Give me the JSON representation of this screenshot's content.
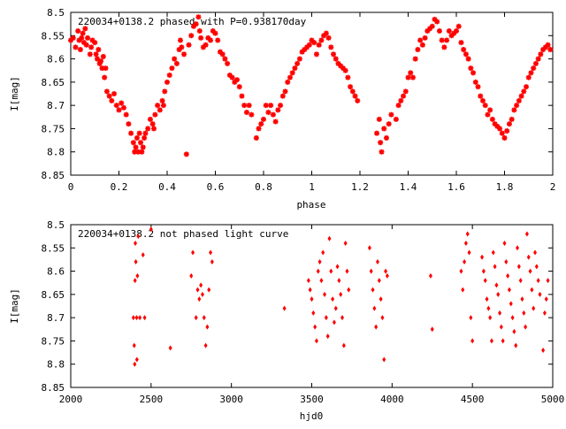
{
  "chart_data": [
    {
      "type": "scatter",
      "title": "220034+0138.2 phased with P=0.938170day",
      "xlabel": "phase",
      "ylabel": "I[mag]",
      "xlim": [
        0,
        2
      ],
      "ylim": [
        8.5,
        8.85
      ],
      "y_inverted": true,
      "grid": false,
      "marker": "filled-star",
      "marker_color": "#ff0000",
      "x_ticks": [
        "0",
        "0.2",
        "0.4",
        "0.6",
        "0.8",
        "1",
        "1.2",
        "1.4",
        "1.6",
        "1.8",
        "2"
      ],
      "y_ticks": [
        "8.5",
        "8.55",
        "8.6",
        "8.65",
        "8.7",
        "8.75",
        "8.8",
        "8.85"
      ],
      "points": [
        [
          0.0,
          8.56
        ],
        [
          0.01,
          8.555
        ],
        [
          0.02,
          8.575
        ],
        [
          0.03,
          8.54
        ],
        [
          0.035,
          8.56
        ],
        [
          0.04,
          8.58
        ],
        [
          0.045,
          8.555
        ],
        [
          0.05,
          8.545
        ],
        [
          0.055,
          8.565
        ],
        [
          0.06,
          8.535
        ],
        [
          0.065,
          8.57
        ],
        [
          0.07,
          8.555
        ],
        [
          0.08,
          8.59
        ],
        [
          0.085,
          8.575
        ],
        [
          0.09,
          8.56
        ],
        [
          0.1,
          8.565
        ],
        [
          0.105,
          8.59
        ],
        [
          0.11,
          8.6
        ],
        [
          0.115,
          8.58
        ],
        [
          0.12,
          8.61
        ],
        [
          0.125,
          8.605
        ],
        [
          0.13,
          8.62
        ],
        [
          0.135,
          8.595
        ],
        [
          0.14,
          8.64
        ],
        [
          0.145,
          8.62
        ],
        [
          0.15,
          8.67
        ],
        [
          0.16,
          8.68
        ],
        [
          0.17,
          8.69
        ],
        [
          0.18,
          8.675
        ],
        [
          0.19,
          8.7
        ],
        [
          0.2,
          8.71
        ],
        [
          0.21,
          8.695
        ],
        [
          0.22,
          8.705
        ],
        [
          0.23,
          8.72
        ],
        [
          0.24,
          8.74
        ],
        [
          0.25,
          8.76
        ],
        [
          0.26,
          8.78
        ],
        [
          0.265,
          8.8
        ],
        [
          0.27,
          8.79
        ],
        [
          0.275,
          8.77
        ],
        [
          0.28,
          8.8
        ],
        [
          0.285,
          8.76
        ],
        [
          0.29,
          8.78
        ],
        [
          0.295,
          8.8
        ],
        [
          0.3,
          8.79
        ],
        [
          0.305,
          8.77
        ],
        [
          0.31,
          8.76
        ],
        [
          0.32,
          8.75
        ],
        [
          0.33,
          8.73
        ],
        [
          0.34,
          8.74
        ],
        [
          0.345,
          8.75
        ],
        [
          0.35,
          8.72
        ],
        [
          0.36,
          8.7
        ],
        [
          0.37,
          8.71
        ],
        [
          0.38,
          8.69
        ],
        [
          0.385,
          8.7
        ],
        [
          0.39,
          8.67
        ],
        [
          0.4,
          8.65
        ],
        [
          0.41,
          8.635
        ],
        [
          0.42,
          8.62
        ],
        [
          0.43,
          8.6
        ],
        [
          0.44,
          8.61
        ],
        [
          0.45,
          8.58
        ],
        [
          0.455,
          8.56
        ],
        [
          0.46,
          8.575
        ],
        [
          0.47,
          8.59
        ],
        [
          0.48,
          8.805
        ],
        [
          0.49,
          8.57
        ],
        [
          0.5,
          8.55
        ],
        [
          0.51,
          8.53
        ],
        [
          0.52,
          8.525
        ],
        [
          0.53,
          8.51
        ],
        [
          0.535,
          8.54
        ],
        [
          0.54,
          8.555
        ],
        [
          0.55,
          8.575
        ],
        [
          0.56,
          8.57
        ],
        [
          0.57,
          8.555
        ],
        [
          0.58,
          8.56
        ],
        [
          0.59,
          8.54
        ],
        [
          0.6,
          8.545
        ],
        [
          0.61,
          8.56
        ],
        [
          0.62,
          8.585
        ],
        [
          0.63,
          8.59
        ],
        [
          0.64,
          8.6
        ],
        [
          0.65,
          8.61
        ],
        [
          0.66,
          8.635
        ],
        [
          0.67,
          8.64
        ],
        [
          0.68,
          8.65
        ],
        [
          0.69,
          8.645
        ],
        [
          0.7,
          8.66
        ],
        [
          0.71,
          8.68
        ],
        [
          0.72,
          8.7
        ],
        [
          0.73,
          8.715
        ],
        [
          0.74,
          8.7
        ],
        [
          0.75,
          8.72
        ],
        [
          0.77,
          8.77
        ],
        [
          0.78,
          8.75
        ],
        [
          0.79,
          8.74
        ],
        [
          0.8,
          8.73
        ],
        [
          0.81,
          8.7
        ],
        [
          0.82,
          8.715
        ],
        [
          0.83,
          8.7
        ],
        [
          0.84,
          8.72
        ],
        [
          0.85,
          8.735
        ],
        [
          0.86,
          8.71
        ],
        [
          0.87,
          8.7
        ],
        [
          0.88,
          8.68
        ],
        [
          0.89,
          8.67
        ],
        [
          0.9,
          8.65
        ],
        [
          0.91,
          8.64
        ],
        [
          0.92,
          8.63
        ],
        [
          0.93,
          8.62
        ],
        [
          0.94,
          8.61
        ],
        [
          0.95,
          8.6
        ],
        [
          0.96,
          8.585
        ],
        [
          0.97,
          8.58
        ],
        [
          0.98,
          8.575
        ],
        [
          0.99,
          8.57
        ],
        [
          1.0,
          8.56
        ],
        [
          1.01,
          8.565
        ],
        [
          1.02,
          8.59
        ],
        [
          1.03,
          8.57
        ],
        [
          1.04,
          8.56
        ],
        [
          1.05,
          8.55
        ],
        [
          1.06,
          8.545
        ],
        [
          1.07,
          8.555
        ],
        [
          1.08,
          8.575
        ],
        [
          1.09,
          8.59
        ],
        [
          1.1,
          8.6
        ],
        [
          1.11,
          8.61
        ],
        [
          1.12,
          8.615
        ],
        [
          1.13,
          8.62
        ],
        [
          1.14,
          8.625
        ],
        [
          1.15,
          8.64
        ],
        [
          1.16,
          8.66
        ],
        [
          1.17,
          8.67
        ],
        [
          1.18,
          8.68
        ],
        [
          1.19,
          8.69
        ],
        [
          1.27,
          8.76
        ],
        [
          1.28,
          8.73
        ],
        [
          1.285,
          8.78
        ],
        [
          1.29,
          8.8
        ],
        [
          1.3,
          8.75
        ],
        [
          1.31,
          8.77
        ],
        [
          1.32,
          8.74
        ],
        [
          1.33,
          8.72
        ],
        [
          1.35,
          8.73
        ],
        [
          1.36,
          8.7
        ],
        [
          1.37,
          8.69
        ],
        [
          1.38,
          8.68
        ],
        [
          1.39,
          8.67
        ],
        [
          1.4,
          8.64
        ],
        [
          1.41,
          8.63
        ],
        [
          1.42,
          8.64
        ],
        [
          1.43,
          8.6
        ],
        [
          1.44,
          8.58
        ],
        [
          1.45,
          8.56
        ],
        [
          1.46,
          8.57
        ],
        [
          1.47,
          8.555
        ],
        [
          1.48,
          8.54
        ],
        [
          1.49,
          8.535
        ],
        [
          1.5,
          8.53
        ],
        [
          1.51,
          8.515
        ],
        [
          1.52,
          8.52
        ],
        [
          1.53,
          8.54
        ],
        [
          1.54,
          8.56
        ],
        [
          1.55,
          8.575
        ],
        [
          1.56,
          8.56
        ],
        [
          1.57,
          8.54
        ],
        [
          1.58,
          8.55
        ],
        [
          1.59,
          8.545
        ],
        [
          1.6,
          8.54
        ],
        [
          1.61,
          8.53
        ],
        [
          1.62,
          8.565
        ],
        [
          1.63,
          8.58
        ],
        [
          1.64,
          8.59
        ],
        [
          1.65,
          8.6
        ],
        [
          1.66,
          8.62
        ],
        [
          1.67,
          8.63
        ],
        [
          1.68,
          8.65
        ],
        [
          1.69,
          8.66
        ],
        [
          1.7,
          8.68
        ],
        [
          1.71,
          8.69
        ],
        [
          1.72,
          8.7
        ],
        [
          1.73,
          8.72
        ],
        [
          1.74,
          8.71
        ],
        [
          1.75,
          8.73
        ],
        [
          1.76,
          8.74
        ],
        [
          1.77,
          8.745
        ],
        [
          1.78,
          8.75
        ],
        [
          1.79,
          8.76
        ],
        [
          1.8,
          8.77
        ],
        [
          1.81,
          8.755
        ],
        [
          1.82,
          8.74
        ],
        [
          1.83,
          8.73
        ],
        [
          1.84,
          8.71
        ],
        [
          1.85,
          8.7
        ],
        [
          1.86,
          8.69
        ],
        [
          1.87,
          8.68
        ],
        [
          1.88,
          8.67
        ],
        [
          1.89,
          8.66
        ],
        [
          1.9,
          8.64
        ],
        [
          1.91,
          8.63
        ],
        [
          1.92,
          8.62
        ],
        [
          1.93,
          8.61
        ],
        [
          1.94,
          8.6
        ],
        [
          1.95,
          8.59
        ],
        [
          1.96,
          8.58
        ],
        [
          1.97,
          8.575
        ],
        [
          1.98,
          8.57
        ],
        [
          1.99,
          8.58
        ]
      ]
    },
    {
      "type": "scatter",
      "title": "220034+0138.2 not phased light curve",
      "xlabel": "hjd0",
      "ylabel": "I[mag]",
      "xlim": [
        2000,
        5000
      ],
      "ylim": [
        8.5,
        8.85
      ],
      "y_inverted": true,
      "grid": false,
      "marker": "filled-diamond",
      "marker_color": "#ff0000",
      "x_ticks": [
        "2000",
        "2500",
        "3000",
        "3500",
        "4000",
        "4500",
        "5000"
      ],
      "y_ticks": [
        "8.5",
        "8.55",
        "8.6",
        "8.65",
        "8.7",
        "8.75",
        "8.8",
        "8.85"
      ],
      "points": [
        [
          2390,
          8.7
        ],
        [
          2395,
          8.76
        ],
        [
          2398,
          8.8
        ],
        [
          2400,
          8.62
        ],
        [
          2402,
          8.54
        ],
        [
          2405,
          8.58
        ],
        [
          2410,
          8.7
        ],
        [
          2412,
          8.79
        ],
        [
          2415,
          8.61
        ],
        [
          2420,
          8.525
        ],
        [
          2430,
          8.7
        ],
        [
          2450,
          8.565
        ],
        [
          2460,
          8.7
        ],
        [
          2500,
          8.51
        ],
        [
          2620,
          8.765
        ],
        [
          2750,
          8.61
        ],
        [
          2760,
          8.56
        ],
        [
          2780,
          8.7
        ],
        [
          2790,
          8.64
        ],
        [
          2800,
          8.66
        ],
        [
          2810,
          8.63
        ],
        [
          2820,
          8.65
        ],
        [
          2830,
          8.7
        ],
        [
          2840,
          8.76
        ],
        [
          2850,
          8.72
        ],
        [
          2860,
          8.64
        ],
        [
          2870,
          8.56
        ],
        [
          2880,
          8.58
        ],
        [
          3330,
          8.68
        ],
        [
          3480,
          8.62
        ],
        [
          3490,
          8.64
        ],
        [
          3500,
          8.66
        ],
        [
          3510,
          8.69
        ],
        [
          3520,
          8.72
        ],
        [
          3530,
          8.75
        ],
        [
          3540,
          8.6
        ],
        [
          3550,
          8.58
        ],
        [
          3560,
          8.62
        ],
        [
          3570,
          8.56
        ],
        [
          3580,
          8.65
        ],
        [
          3590,
          8.7
        ],
        [
          3600,
          8.74
        ],
        [
          3610,
          8.53
        ],
        [
          3620,
          8.6
        ],
        [
          3630,
          8.66
        ],
        [
          3640,
          8.71
        ],
        [
          3650,
          8.68
        ],
        [
          3660,
          8.59
        ],
        [
          3670,
          8.62
        ],
        [
          3680,
          8.65
        ],
        [
          3690,
          8.7
        ],
        [
          3700,
          8.76
        ],
        [
          3710,
          8.54
        ],
        [
          3720,
          8.6
        ],
        [
          3730,
          8.64
        ],
        [
          3860,
          8.55
        ],
        [
          3870,
          8.6
        ],
        [
          3880,
          8.64
        ],
        [
          3890,
          8.68
        ],
        [
          3900,
          8.72
        ],
        [
          3910,
          8.58
        ],
        [
          3920,
          8.62
        ],
        [
          3930,
          8.66
        ],
        [
          3940,
          8.7
        ],
        [
          3950,
          8.79
        ],
        [
          3960,
          8.6
        ],
        [
          3970,
          8.61
        ],
        [
          4240,
          8.61
        ],
        [
          4250,
          8.725
        ],
        [
          4430,
          8.6
        ],
        [
          4440,
          8.64
        ],
        [
          4450,
          8.58
        ],
        [
          4460,
          8.54
        ],
        [
          4470,
          8.52
        ],
        [
          4480,
          8.56
        ],
        [
          4490,
          8.7
        ],
        [
          4500,
          8.75
        ],
        [
          4560,
          8.57
        ],
        [
          4570,
          8.6
        ],
        [
          4580,
          8.62
        ],
        [
          4590,
          8.66
        ],
        [
          4600,
          8.68
        ],
        [
          4610,
          8.7
        ],
        [
          4620,
          8.75
        ],
        [
          4630,
          8.56
        ],
        [
          4640,
          8.59
        ],
        [
          4650,
          8.63
        ],
        [
          4660,
          8.65
        ],
        [
          4670,
          8.69
        ],
        [
          4680,
          8.72
        ],
        [
          4690,
          8.75
        ],
        [
          4700,
          8.54
        ],
        [
          4710,
          8.58
        ],
        [
          4720,
          8.61
        ],
        [
          4730,
          8.64
        ],
        [
          4740,
          8.67
        ],
        [
          4750,
          8.7
        ],
        [
          4760,
          8.73
        ],
        [
          4770,
          8.76
        ],
        [
          4780,
          8.55
        ],
        [
          4790,
          8.59
        ],
        [
          4800,
          8.62
        ],
        [
          4810,
          8.66
        ],
        [
          4820,
          8.69
        ],
        [
          4830,
          8.72
        ],
        [
          4840,
          8.52
        ],
        [
          4850,
          8.57
        ],
        [
          4860,
          8.6
        ],
        [
          4870,
          8.64
        ],
        [
          4880,
          8.68
        ],
        [
          4890,
          8.56
        ],
        [
          4900,
          8.59
        ],
        [
          4910,
          8.62
        ],
        [
          4920,
          8.65
        ],
        [
          4940,
          8.77
        ],
        [
          4950,
          8.69
        ],
        [
          4960,
          8.66
        ],
        [
          4970,
          8.62
        ]
      ]
    }
  ]
}
